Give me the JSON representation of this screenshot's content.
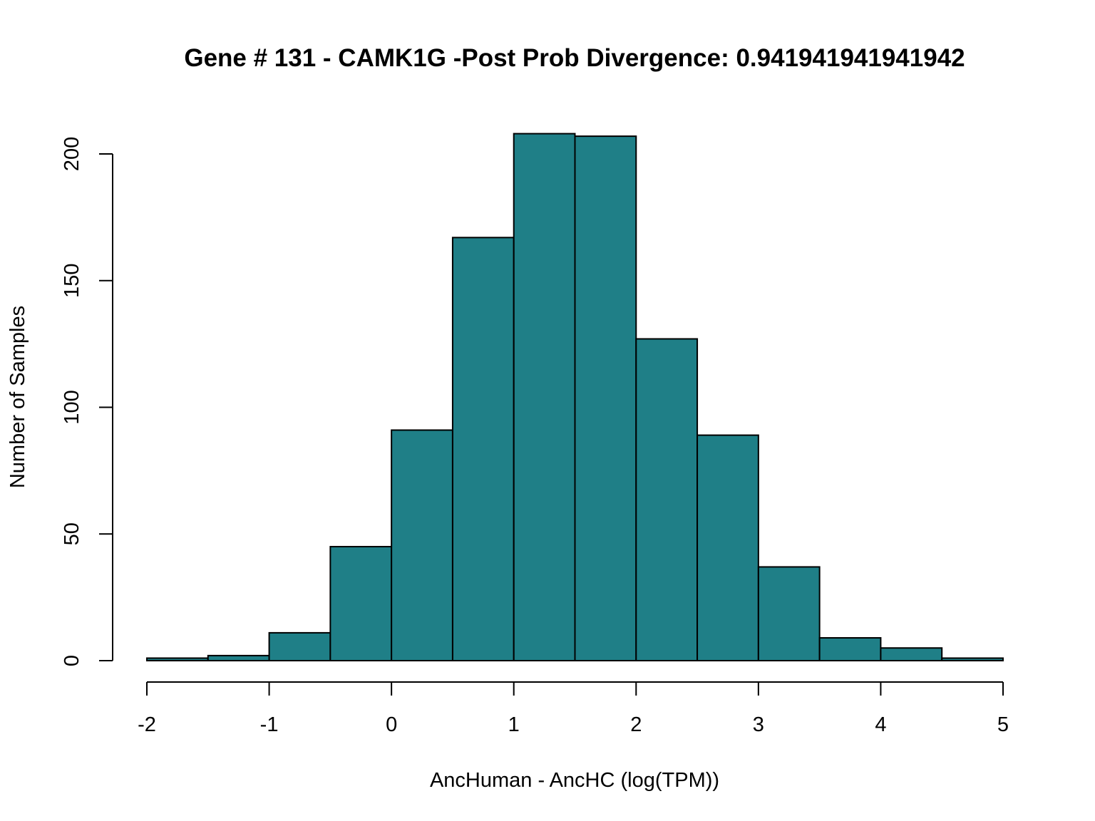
{
  "chart_data": {
    "type": "bar",
    "title": "Gene # 131 - CAMK1G -Post Prob Divergence: 0.941941941941942",
    "xlabel": "AncHuman - AncHC (log(TPM))",
    "ylabel": "Number of Samples",
    "bin_edges": [
      -2,
      -1.5,
      -1,
      -0.5,
      0,
      0.5,
      1,
      1.5,
      2,
      2.5,
      3,
      3.5,
      4,
      4.5,
      5
    ],
    "values": [
      1,
      2,
      11,
      45,
      91,
      167,
      208,
      207,
      127,
      89,
      37,
      9,
      5,
      1
    ],
    "xlim": [
      -2,
      5
    ],
    "ylim": [
      0,
      200
    ],
    "x_ticks": [
      "-2",
      "-1",
      "0",
      "1",
      "2",
      "3",
      "4",
      "5"
    ],
    "y_ticks": [
      "0",
      "50",
      "100",
      "150",
      "200"
    ],
    "grid": false,
    "legend": "none"
  },
  "colors": {
    "bar_fill": "#1f7f87",
    "bar_stroke": "#000000",
    "axis": "#000000"
  }
}
